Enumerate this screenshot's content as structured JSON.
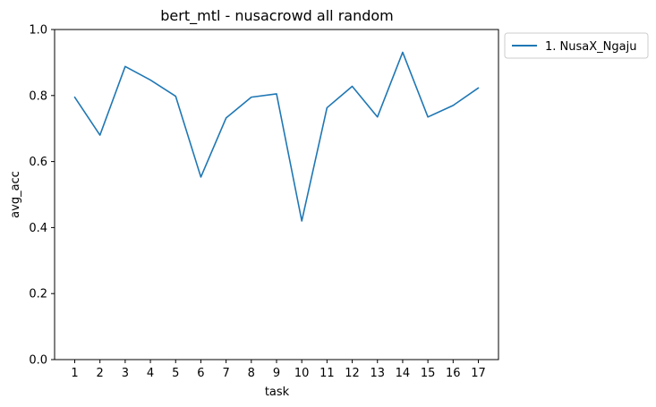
{
  "chart_data": {
    "type": "line",
    "title": "bert_mtl - nusacrowd all random",
    "xlabel": "task",
    "ylabel": "avg_acc",
    "categories": [
      "1",
      "2",
      "3",
      "4",
      "5",
      "6",
      "7",
      "8",
      "9",
      "10",
      "11",
      "12",
      "13",
      "14",
      "15",
      "16",
      "17"
    ],
    "ylim": [
      0.0,
      1.0
    ],
    "yticks": [
      "0.0",
      "0.2",
      "0.4",
      "0.6",
      "0.8",
      "1.0"
    ],
    "series": [
      {
        "name": "1. NusaX_Ngaju",
        "color": "#1f77b4",
        "values": [
          0.795,
          0.68,
          0.888,
          0.847,
          0.798,
          0.553,
          0.732,
          0.795,
          0.805,
          0.42,
          0.763,
          0.828,
          0.735,
          0.931,
          0.735,
          0.77,
          0.823
        ]
      }
    ],
    "legend_position": "outside-top-right",
    "grid": false
  }
}
